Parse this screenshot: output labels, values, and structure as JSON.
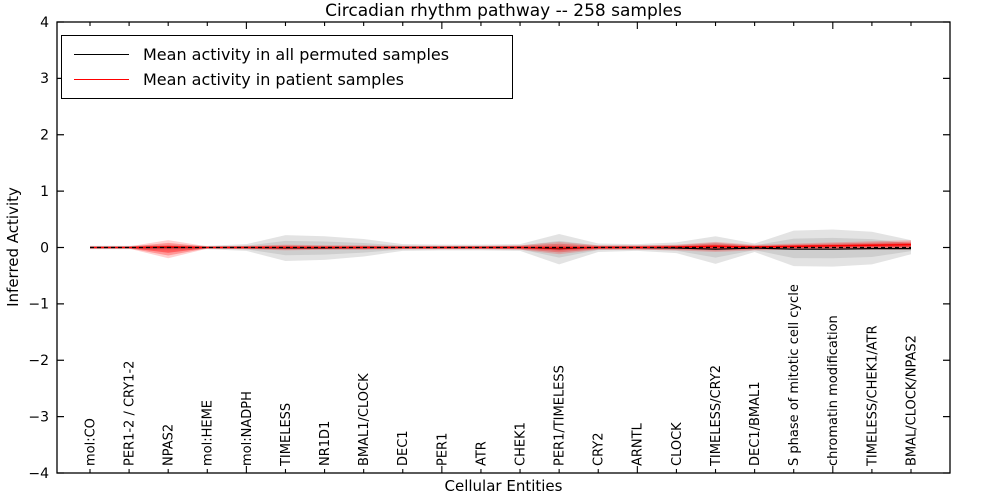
{
  "title": "Circadian rhythm pathway -- 258 samples",
  "axes": {
    "xlabel": "Cellular Entities",
    "ylabel": "Inferred Activity"
  },
  "legend": {
    "position": "upper left",
    "items": [
      {
        "label": "Mean activity in all permuted samples",
        "color": "#000000"
      },
      {
        "label": "Mean activity in patient samples",
        "color": "#ff0000"
      }
    ]
  },
  "colors": {
    "permuted_line": "#000000",
    "patient_line": "#ff0000",
    "permuted_band": "#000000",
    "patient_band": "#ff0000",
    "spine": "#000000",
    "background": "#ffffff"
  },
  "chart_data": {
    "type": "line",
    "title": "Circadian rhythm pathway -- 258 samples",
    "xlabel": "Cellular Entities",
    "ylabel": "Inferred Activity",
    "ylim": [
      -4,
      4
    ],
    "yticks": [
      -4,
      -3,
      -2,
      -1,
      0,
      1,
      2,
      3,
      4
    ],
    "ytick_labels": [
      "−4",
      "−3",
      "−2",
      "−1",
      "0",
      "1",
      "2",
      "3",
      "4"
    ],
    "x_major_tick_indices": [
      4,
      9,
      14,
      19
    ],
    "grid": false,
    "legend_position": "upper left",
    "zero_line": {
      "y": 0,
      "style": "dashed",
      "color": "#000000"
    },
    "categories": [
      "mol:CO",
      "PER1-2 / CRY1-2",
      "NPAS2",
      "mol:HEME",
      "mol:NADPH",
      "TIMELESS",
      "NR1D1",
      "BMAL1/CLOCK",
      "DEC1",
      "PER1",
      "ATR",
      "CHEK1",
      "PER1/TIMELESS",
      "CRY2",
      "ARNTL",
      "CLOCK",
      "TIMELESS/CRY2",
      "DEC1/BMAL1",
      "S phase of mitotic cell cycle",
      "chromatin modification",
      "TIMELESS/CHEK1/ATR",
      "BMAL/CLOCK/NPAS2"
    ],
    "series": [
      {
        "name": "Mean activity in all permuted samples",
        "color": "#000000",
        "values": [
          0,
          0,
          0,
          0,
          0,
          -0.01,
          -0.01,
          0,
          0,
          0,
          0,
          0,
          -0.02,
          0,
          0,
          -0.01,
          -0.03,
          -0.01,
          -0.03,
          -0.03,
          -0.02,
          -0.02
        ]
      },
      {
        "name": "Mean activity in patient samples",
        "color": "#ff0000",
        "values": [
          0,
          0,
          0.01,
          0,
          0,
          0,
          0,
          0,
          0,
          0,
          0,
          0,
          -0.01,
          0,
          0,
          0.01,
          0.02,
          0.01,
          0.02,
          0.03,
          0.04,
          0.05
        ]
      }
    ],
    "bands": [
      {
        "name": "permuted-range",
        "color": "#000000",
        "upper": [
          0.03,
          0.03,
          0.05,
          0.03,
          0.06,
          0.22,
          0.2,
          0.15,
          0.06,
          0.05,
          0.05,
          0.06,
          0.24,
          0.07,
          0.06,
          0.09,
          0.2,
          0.07,
          0.3,
          0.32,
          0.28,
          0.13
        ],
        "lower": [
          -0.03,
          -0.03,
          -0.05,
          -0.03,
          -0.06,
          -0.24,
          -0.22,
          -0.16,
          -0.06,
          -0.05,
          -0.05,
          -0.06,
          -0.3,
          -0.08,
          -0.06,
          -0.1,
          -0.29,
          -0.08,
          -0.33,
          -0.34,
          -0.3,
          -0.12
        ]
      },
      {
        "name": "patient-range",
        "color": "#ff0000",
        "upper": [
          0.02,
          0.02,
          0.13,
          0.02,
          0.03,
          0.05,
          0.04,
          0.04,
          0.03,
          0.03,
          0.03,
          0.04,
          0.1,
          0.04,
          0.04,
          0.05,
          0.1,
          0.05,
          0.07,
          0.09,
          0.11,
          0.13
        ],
        "lower": [
          -0.02,
          -0.02,
          -0.19,
          -0.02,
          -0.03,
          -0.05,
          -0.04,
          -0.04,
          -0.03,
          -0.03,
          -0.03,
          -0.04,
          -0.12,
          -0.04,
          -0.04,
          -0.05,
          -0.08,
          -0.05,
          -0.04,
          -0.04,
          -0.04,
          -0.04
        ]
      }
    ]
  }
}
